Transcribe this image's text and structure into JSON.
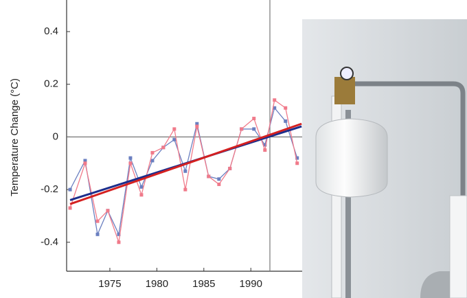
{
  "chart_data": {
    "type": "line",
    "y_label": "Temperature Change (°C)",
    "xlim": [
      1970.4,
      2013
    ],
    "xticks": [
      1975,
      1980,
      1985,
      1990
    ],
    "ylim": [
      -0.51,
      0.52
    ],
    "yticks": [
      -0.4,
      -0.2,
      0,
      0.2,
      0.4
    ],
    "series": [
      {
        "color": "#6a7fc0",
        "markers": true,
        "x": [
          1970.77,
          1972.37,
          1973.69,
          1974.78,
          1975.95,
          1977.19,
          1978.36,
          1979.53,
          1980.69,
          1981.86,
          1983.03,
          1984.27,
          1985.51,
          1986.61,
          1987.77,
          1989.01,
          1990.33,
          1991.5,
          1992.52,
          1993.69,
          1994.93
        ],
        "values": [
          -0.2,
          -0.09,
          -0.37,
          -0.28,
          -0.37,
          -0.08,
          -0.19,
          -0.09,
          -0.04,
          -0.01,
          -0.13,
          0.05,
          -0.15,
          -0.16,
          -0.12,
          0.03,
          0.03,
          -0.03,
          0.11,
          0.06,
          -0.08
        ]
      },
      {
        "color": "#f07a8a",
        "markers": true,
        "x": [
          1970.77,
          1972.37,
          1973.69,
          1974.78,
          1975.95,
          1977.19,
          1978.36,
          1979.53,
          1980.69,
          1981.86,
          1983.03,
          1984.27,
          1985.51,
          1986.61,
          1987.77,
          1989.01,
          1990.33,
          1991.5,
          1992.52,
          1993.69,
          1994.93
        ],
        "values": [
          -0.27,
          -0.1,
          -0.32,
          -0.28,
          -0.4,
          -0.1,
          -0.22,
          -0.06,
          -0.04,
          0.03,
          -0.2,
          0.04,
          -0.15,
          -0.18,
          -0.12,
          0.03,
          0.07,
          -0.05,
          0.14,
          0.11,
          -0.1
        ]
      },
      {
        "color": "#1c2e8c",
        "markers": false,
        "x": [
          1970.77,
          1995.4
        ],
        "values": [
          -0.24,
          0.04
        ]
      },
      {
        "color": "#d42020",
        "markers": false,
        "x": [
          1970.77,
          1995.4
        ],
        "values": [
          -0.255,
          0.05
        ]
      }
    ]
  }
}
